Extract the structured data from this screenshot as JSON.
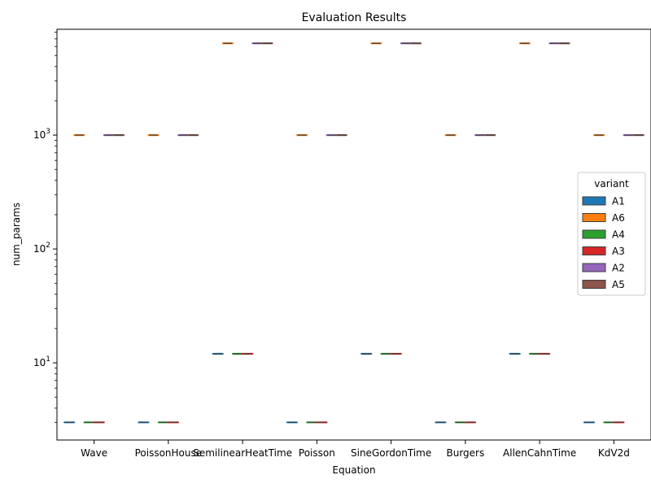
{
  "chart_data": {
    "type": "violin",
    "title": "Evaluation Results",
    "xlabel": "Equation",
    "ylabel": "num_params",
    "yscale": "log",
    "ylim": [
      2.1,
      8500
    ],
    "y_ticks": [
      10,
      100,
      1000
    ],
    "y_tick_labels": [
      "10^1",
      "10^2",
      "10^3"
    ],
    "categories": [
      "Wave",
      "PoissonHouse",
      "SemilinearHeatTime",
      "Poisson",
      "SineGordonTime",
      "Burgers",
      "AllenCahnTime",
      "KdV2d"
    ],
    "legend": {
      "title": "variant",
      "placement": "center-right"
    },
    "series": [
      {
        "name": "A1",
        "color": "#1f77b4",
        "values": [
          3,
          3,
          12,
          3,
          12,
          3,
          12,
          3
        ]
      },
      {
        "name": "A6",
        "color": "#ff7f0e",
        "values": [
          1000,
          1000,
          6400,
          1000,
          6400,
          1000,
          6400,
          1000
        ]
      },
      {
        "name": "A4",
        "color": "#2ca02c",
        "values": [
          3,
          3,
          12,
          3,
          12,
          3,
          12,
          3
        ]
      },
      {
        "name": "A3",
        "color": "#d62728",
        "values": [
          3,
          3,
          12,
          3,
          12,
          3,
          12,
          3
        ]
      },
      {
        "name": "A2",
        "color": "#9467bd",
        "values": [
          1000,
          1000,
          6400,
          1000,
          6400,
          1000,
          6400,
          1000
        ]
      },
      {
        "name": "A5",
        "color": "#8c564b",
        "values": [
          1000,
          1000,
          6400,
          1000,
          6400,
          1000,
          6400,
          1000
        ]
      }
    ]
  }
}
